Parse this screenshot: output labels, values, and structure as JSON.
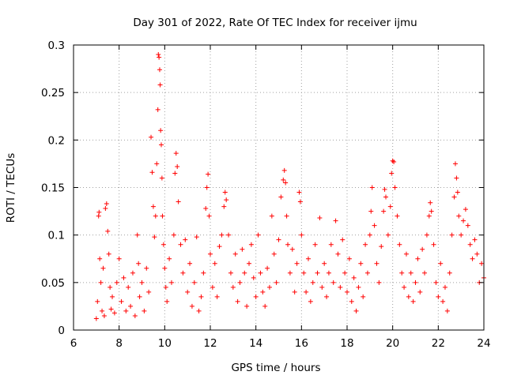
{
  "chart_data": {
    "type": "scatter",
    "title": "Day 301 of 2022, Rate Of TEC Index for receiver ijmu",
    "xlabel": "GPS time / hours",
    "ylabel": "ROTI / TECUs",
    "xlim": [
      6,
      24
    ],
    "ylim": [
      0,
      0.3
    ],
    "x_ticks": [
      6,
      8,
      10,
      12,
      14,
      16,
      18,
      20,
      22,
      24
    ],
    "x_tick_labels": [
      "6",
      "8",
      "10",
      "12",
      "14",
      "16",
      "18",
      "20",
      "22",
      "24"
    ],
    "y_ticks": [
      0,
      0.05,
      0.1,
      0.15,
      0.2,
      0.25,
      0.3
    ],
    "y_tick_labels": [
      "0",
      "0.05",
      "0.1",
      "0.15",
      "0.2",
      "0.25",
      "0.3"
    ],
    "grid": true,
    "marker": "+",
    "series": [
      {
        "name": "ROTI",
        "color": "#ff0000",
        "points": [
          [
            7.0,
            0.012
          ],
          [
            7.05,
            0.03
          ],
          [
            7.1,
            0.12
          ],
          [
            7.12,
            0.124
          ],
          [
            7.15,
            0.075
          ],
          [
            7.2,
            0.05
          ],
          [
            7.25,
            0.02
          ],
          [
            7.3,
            0.065
          ],
          [
            7.35,
            0.015
          ],
          [
            7.4,
            0.128
          ],
          [
            7.45,
            0.133
          ],
          [
            7.5,
            0.104
          ],
          [
            7.55,
            0.08
          ],
          [
            7.6,
            0.045
          ],
          [
            7.65,
            0.022
          ],
          [
            7.7,
            0.035
          ],
          [
            7.8,
            0.018
          ],
          [
            7.9,
            0.05
          ],
          [
            8.0,
            0.075
          ],
          [
            8.1,
            0.03
          ],
          [
            8.2,
            0.055
          ],
          [
            8.3,
            0.02
          ],
          [
            8.4,
            0.045
          ],
          [
            8.5,
            0.025
          ],
          [
            8.6,
            0.06
          ],
          [
            8.7,
            0.015
          ],
          [
            8.8,
            0.1
          ],
          [
            8.85,
            0.07
          ],
          [
            8.9,
            0.035
          ],
          [
            9.0,
            0.05
          ],
          [
            9.1,
            0.02
          ],
          [
            9.2,
            0.065
          ],
          [
            9.3,
            0.04
          ],
          [
            9.4,
            0.203
          ],
          [
            9.45,
            0.166
          ],
          [
            9.5,
            0.13
          ],
          [
            9.55,
            0.098
          ],
          [
            9.6,
            0.12
          ],
          [
            9.65,
            0.175
          ],
          [
            9.7,
            0.232
          ],
          [
            9.72,
            0.29
          ],
          [
            9.75,
            0.287
          ],
          [
            9.78,
            0.274
          ],
          [
            9.8,
            0.258
          ],
          [
            9.82,
            0.21
          ],
          [
            9.85,
            0.195
          ],
          [
            9.88,
            0.16
          ],
          [
            9.9,
            0.12
          ],
          [
            9.95,
            0.09
          ],
          [
            10.0,
            0.065
          ],
          [
            10.05,
            0.045
          ],
          [
            10.1,
            0.03
          ],
          [
            10.2,
            0.075
          ],
          [
            10.3,
            0.05
          ],
          [
            10.4,
            0.1
          ],
          [
            10.45,
            0.165
          ],
          [
            10.5,
            0.186
          ],
          [
            10.55,
            0.172
          ],
          [
            10.6,
            0.135
          ],
          [
            10.7,
            0.09
          ],
          [
            10.8,
            0.06
          ],
          [
            10.9,
            0.095
          ],
          [
            11.0,
            0.04
          ],
          [
            11.1,
            0.07
          ],
          [
            11.2,
            0.025
          ],
          [
            11.3,
            0.05
          ],
          [
            11.4,
            0.098
          ],
          [
            11.5,
            0.02
          ],
          [
            11.6,
            0.035
          ],
          [
            11.7,
            0.06
          ],
          [
            11.8,
            0.128
          ],
          [
            11.85,
            0.15
          ],
          [
            11.9,
            0.164
          ],
          [
            11.95,
            0.12
          ],
          [
            12.0,
            0.08
          ],
          [
            12.1,
            0.045
          ],
          [
            12.2,
            0.07
          ],
          [
            12.3,
            0.035
          ],
          [
            12.4,
            0.088
          ],
          [
            12.5,
            0.1
          ],
          [
            12.6,
            0.13
          ],
          [
            12.65,
            0.145
          ],
          [
            12.7,
            0.137
          ],
          [
            12.8,
            0.1
          ],
          [
            12.9,
            0.06
          ],
          [
            13.0,
            0.045
          ],
          [
            13.1,
            0.08
          ],
          [
            13.2,
            0.03
          ],
          [
            13.3,
            0.05
          ],
          [
            13.4,
            0.085
          ],
          [
            13.5,
            0.06
          ],
          [
            13.6,
            0.025
          ],
          [
            13.7,
            0.07
          ],
          [
            13.8,
            0.09
          ],
          [
            13.9,
            0.055
          ],
          [
            14.0,
            0.035
          ],
          [
            14.1,
            0.1
          ],
          [
            14.2,
            0.06
          ],
          [
            14.3,
            0.04
          ],
          [
            14.4,
            0.025
          ],
          [
            14.5,
            0.065
          ],
          [
            14.6,
            0.045
          ],
          [
            14.7,
            0.12
          ],
          [
            14.8,
            0.08
          ],
          [
            14.9,
            0.05
          ],
          [
            15.0,
            0.095
          ],
          [
            15.1,
            0.14
          ],
          [
            15.2,
            0.158
          ],
          [
            15.25,
            0.168
          ],
          [
            15.3,
            0.155
          ],
          [
            15.35,
            0.12
          ],
          [
            15.4,
            0.09
          ],
          [
            15.5,
            0.06
          ],
          [
            15.6,
            0.085
          ],
          [
            15.7,
            0.04
          ],
          [
            15.8,
            0.07
          ],
          [
            15.9,
            0.145
          ],
          [
            15.95,
            0.135
          ],
          [
            16.0,
            0.1
          ],
          [
            16.1,
            0.06
          ],
          [
            16.2,
            0.04
          ],
          [
            16.3,
            0.075
          ],
          [
            16.4,
            0.03
          ],
          [
            16.5,
            0.05
          ],
          [
            16.6,
            0.09
          ],
          [
            16.7,
            0.06
          ],
          [
            16.8,
            0.118
          ],
          [
            16.9,
            0.045
          ],
          [
            17.0,
            0.07
          ],
          [
            17.1,
            0.035
          ],
          [
            17.2,
            0.06
          ],
          [
            17.3,
            0.09
          ],
          [
            17.4,
            0.05
          ],
          [
            17.5,
            0.115
          ],
          [
            17.6,
            0.08
          ],
          [
            17.7,
            0.045
          ],
          [
            17.8,
            0.095
          ],
          [
            17.9,
            0.06
          ],
          [
            18.0,
            0.04
          ],
          [
            18.1,
            0.075
          ],
          [
            18.2,
            0.03
          ],
          [
            18.3,
            0.055
          ],
          [
            18.4,
            0.02
          ],
          [
            18.5,
            0.045
          ],
          [
            18.6,
            0.07
          ],
          [
            18.7,
            0.035
          ],
          [
            18.8,
            0.09
          ],
          [
            18.9,
            0.06
          ],
          [
            19.0,
            0.1
          ],
          [
            19.05,
            0.125
          ],
          [
            19.1,
            0.15
          ],
          [
            19.2,
            0.11
          ],
          [
            19.3,
            0.07
          ],
          [
            19.4,
            0.05
          ],
          [
            19.5,
            0.088
          ],
          [
            19.6,
            0.125
          ],
          [
            19.65,
            0.148
          ],
          [
            19.7,
            0.14
          ],
          [
            19.8,
            0.1
          ],
          [
            19.9,
            0.13
          ],
          [
            19.95,
            0.165
          ],
          [
            20.0,
            0.178
          ],
          [
            20.05,
            0.177
          ],
          [
            20.1,
            0.15
          ],
          [
            20.2,
            0.12
          ],
          [
            20.3,
            0.09
          ],
          [
            20.4,
            0.06
          ],
          [
            20.5,
            0.045
          ],
          [
            20.6,
            0.08
          ],
          [
            20.7,
            0.035
          ],
          [
            20.8,
            0.06
          ],
          [
            20.9,
            0.03
          ],
          [
            21.0,
            0.05
          ],
          [
            21.1,
            0.075
          ],
          [
            21.2,
            0.04
          ],
          [
            21.3,
            0.085
          ],
          [
            21.4,
            0.06
          ],
          [
            21.5,
            0.1
          ],
          [
            21.6,
            0.12
          ],
          [
            21.65,
            0.134
          ],
          [
            21.7,
            0.125
          ],
          [
            21.8,
            0.09
          ],
          [
            21.9,
            0.05
          ],
          [
            22.0,
            0.035
          ],
          [
            22.1,
            0.07
          ],
          [
            22.2,
            0.03
          ],
          [
            22.3,
            0.045
          ],
          [
            22.4,
            0.02
          ],
          [
            22.5,
            0.06
          ],
          [
            22.6,
            0.1
          ],
          [
            22.7,
            0.14
          ],
          [
            22.75,
            0.175
          ],
          [
            22.8,
            0.16
          ],
          [
            22.85,
            0.145
          ],
          [
            22.9,
            0.12
          ],
          [
            23.0,
            0.1
          ],
          [
            23.1,
            0.115
          ],
          [
            23.2,
            0.127
          ],
          [
            23.3,
            0.11
          ],
          [
            23.4,
            0.09
          ],
          [
            23.5,
            0.075
          ],
          [
            23.6,
            0.095
          ],
          [
            23.7,
            0.08
          ],
          [
            23.8,
            0.05
          ],
          [
            23.9,
            0.07
          ],
          [
            24.0,
            0.055
          ]
        ]
      }
    ]
  }
}
